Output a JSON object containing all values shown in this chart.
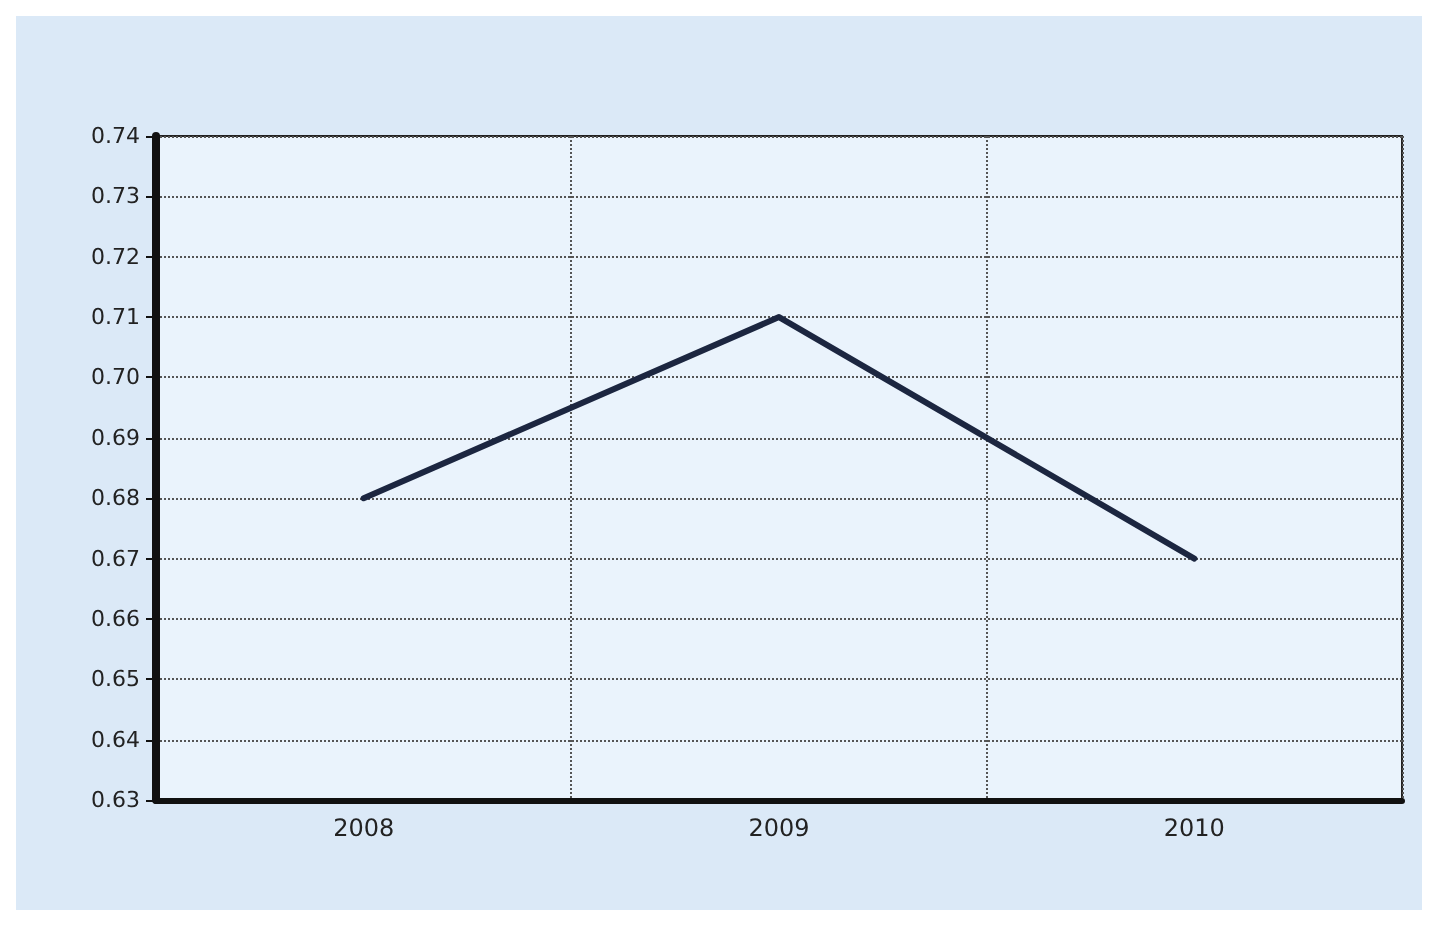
{
  "chart_data": {
    "type": "line",
    "categories": [
      "2008",
      "2009",
      "2010"
    ],
    "series": [
      {
        "color": "#1c2640",
        "values": [
          0.68,
          0.71,
          0.67
        ]
      }
    ],
    "ylim": [
      0.63,
      0.74
    ],
    "yticks": [
      0.63,
      0.64,
      0.65,
      0.66,
      0.67,
      0.68,
      0.69,
      {
        "value": 0.7,
        "label": "0.70"
      },
      0.71,
      0.72,
      0.73,
      0.74
    ],
    "grid": true,
    "marker": "none",
    "line_style": "solid"
  }
}
